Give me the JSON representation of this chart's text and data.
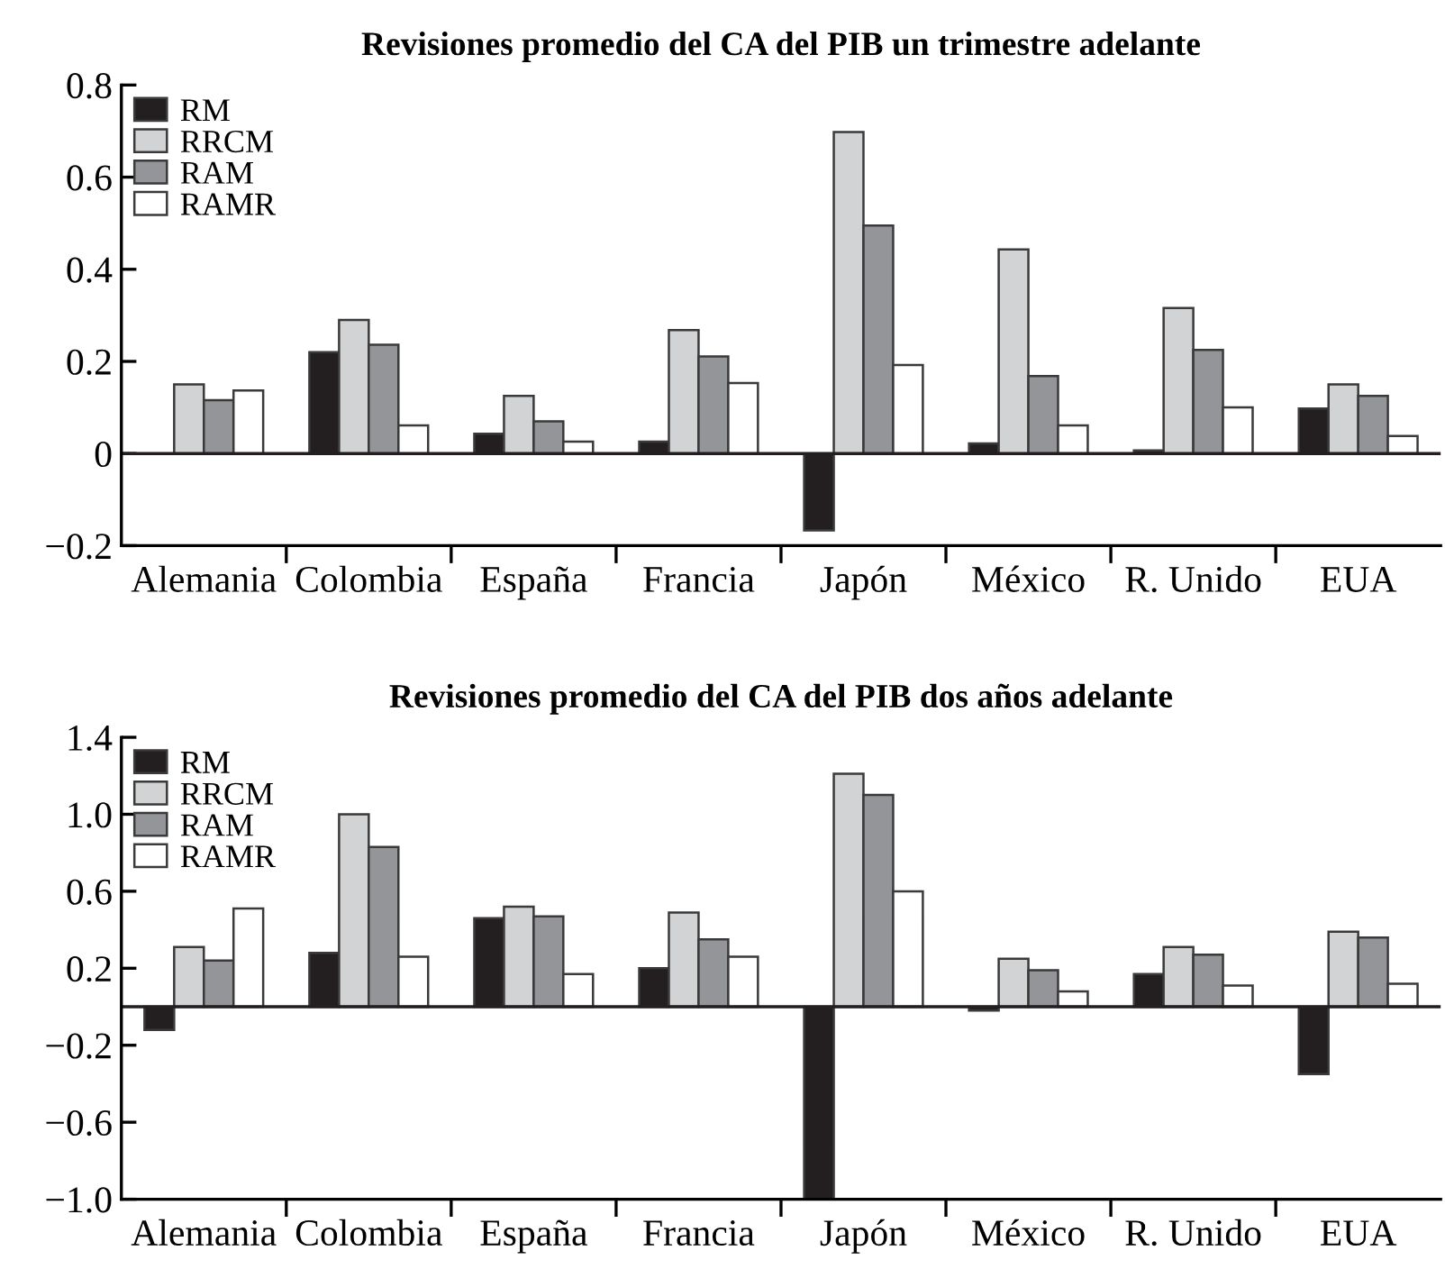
{
  "chart_data": [
    {
      "type": "bar",
      "title": "Revisiones promedio del CA del PIB un trimestre adelante",
      "categories": [
        "Alemania",
        "Colombia",
        "España",
        "Francia",
        "Japón",
        "México",
        "R. Unido",
        "EUA"
      ],
      "series": [
        {
          "name": "RM",
          "color": "#231f20",
          "values": [
            null,
            0.22,
            0.043,
            0.026,
            -0.167,
            0.022,
            0.007,
            0.098
          ]
        },
        {
          "name": "RRCM",
          "color": "#d1d3d4",
          "values": [
            0.15,
            0.29,
            0.125,
            0.268,
            0.698,
            0.443,
            0.316,
            0.15
          ]
        },
        {
          "name": "RAM",
          "color": "#939598",
          "values": [
            0.116,
            0.236,
            0.07,
            0.211,
            0.495,
            0.168,
            0.225,
            0.125
          ]
        },
        {
          "name": "RAMR",
          "color": "#ffffff",
          "values": [
            0.137,
            0.061,
            0.026,
            0.153,
            0.192,
            0.061,
            0.1,
            0.038
          ]
        }
      ],
      "ylim": [
        -0.2,
        0.8
      ],
      "yticks": [
        {
          "value": -0.2,
          "label": "−0.2"
        },
        0,
        0.2,
        0.4,
        0.6,
        0.8
      ],
      "ref_lines": [
        {
          "axis": "y",
          "value": 0,
          "color": "#231f20"
        }
      ],
      "legend": "top left",
      "grid": false
    },
    {
      "type": "bar",
      "title": "Revisiones promedio del CA del PIB dos años adelante",
      "categories": [
        "Alemania",
        "Colombia",
        "España",
        "Francia",
        "Japón",
        "México",
        "R. Unido",
        "EUA"
      ],
      "series": [
        {
          "name": "RM",
          "color": "#231f20",
          "values": [
            -0.12,
            0.28,
            0.46,
            0.2,
            -1.0,
            -0.02,
            0.17,
            -0.35
          ]
        },
        {
          "name": "RRCM",
          "color": "#d1d3d4",
          "values": [
            0.31,
            1.0,
            0.52,
            0.49,
            1.21,
            0.25,
            0.31,
            0.39
          ]
        },
        {
          "name": "RAM",
          "color": "#939598",
          "values": [
            0.24,
            0.83,
            0.47,
            0.35,
            1.1,
            0.19,
            0.27,
            0.36
          ]
        },
        {
          "name": "RAMR",
          "color": "#ffffff",
          "values": [
            0.51,
            0.26,
            0.17,
            0.26,
            0.6,
            0.08,
            0.11,
            0.12
          ]
        }
      ],
      "ylim": [
        -1.0,
        1.4
      ],
      "yticks": [
        {
          "value": -1.0,
          "label": "−1.0"
        },
        {
          "value": -0.6,
          "label": "−0.6"
        },
        {
          "value": -0.2,
          "label": "−0.2"
        },
        0.2,
        0.6,
        {
          "value": 1.0,
          "label": "1.0"
        },
        1.4
      ],
      "ref_lines": [
        {
          "axis": "y",
          "value": 0,
          "color": "#231f20"
        }
      ],
      "legend": "top left",
      "grid": false
    }
  ]
}
